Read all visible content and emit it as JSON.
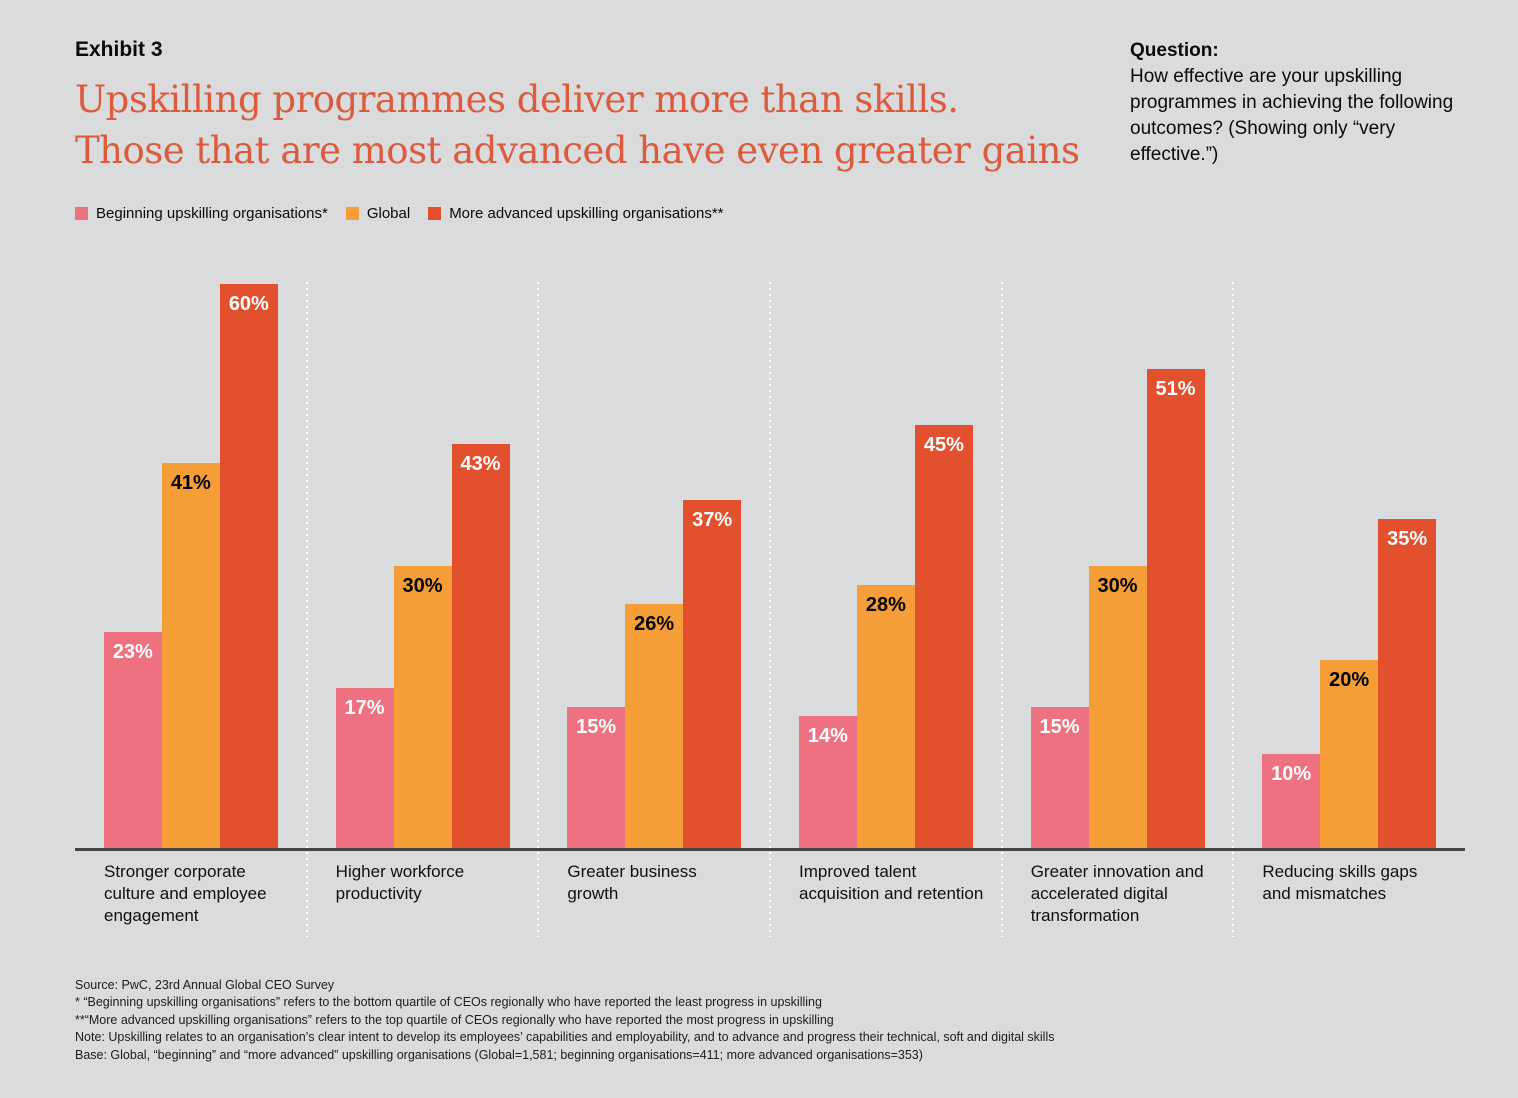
{
  "page": {
    "background_color": "#dadbdc",
    "title_color": "#dc5b3c",
    "axis_color": "#454545"
  },
  "header": {
    "exhibit_label": "Exhibit 3",
    "title_lines": [
      "Upskilling programmes deliver more than skills.",
      "Those that are most advanced have even greater gains"
    ]
  },
  "question": {
    "heading": "Question:",
    "body": "How effective are your upskilling programmes in achieving the following outcomes? (Showing only “very effective.”)"
  },
  "chart_data": {
    "type": "bar",
    "title": "Upskilling programmes deliver more than skills. Those that are most advanced have even greater gains",
    "categories": [
      "Stronger corporate culture and employee engagement",
      "Higher workforce productivity",
      "Greater business growth",
      "Improved talent acquisition and retention",
      "Greater innovation and accelerated digital transformation",
      "Reducing skills gaps and mismatches"
    ],
    "series": [
      {
        "name": "Beginning upskilling organisations*",
        "color": "#ed7181",
        "label_color": "#ffffff",
        "values": [
          23,
          17,
          15,
          14,
          15,
          10
        ]
      },
      {
        "name": "Global",
        "color": "#f59e38",
        "label_color": "#000000",
        "values": [
          41,
          30,
          26,
          28,
          30,
          20
        ]
      },
      {
        "name": "More advanced upskilling organisations**",
        "color": "#e2502e",
        "label_color": "#ffffff",
        "values": [
          60,
          43,
          37,
          45,
          51,
          35
        ]
      }
    ],
    "value_suffix": "%",
    "xlabel": "",
    "ylabel": "",
    "ylim": [
      0,
      60
    ],
    "y_axis_visible": false,
    "value_labels": "inside bar top",
    "grid": "white dotted vertical separators between category groups",
    "legend_position": "top-left"
  },
  "footnotes": [
    "Source: PwC, 23rd Annual Global CEO Survey",
    "*  “Beginning upskilling organisations” refers to the bottom quartile of CEOs regionally who have reported the least progress in upskilling",
    "**“More advanced upskilling organisations” refers to the top quartile of CEOs regionally who have reported the most progress in upskilling",
    "Note: Upskilling relates to an organisation’s clear intent to develop its employees’ capabilities and employability, and to advance and progress their technical, soft and digital skills",
    "Base: Global, “beginning” and “more advanced” upskilling organisations (Global=1,581; beginning organisations=411; more advanced organisations=353)"
  ]
}
